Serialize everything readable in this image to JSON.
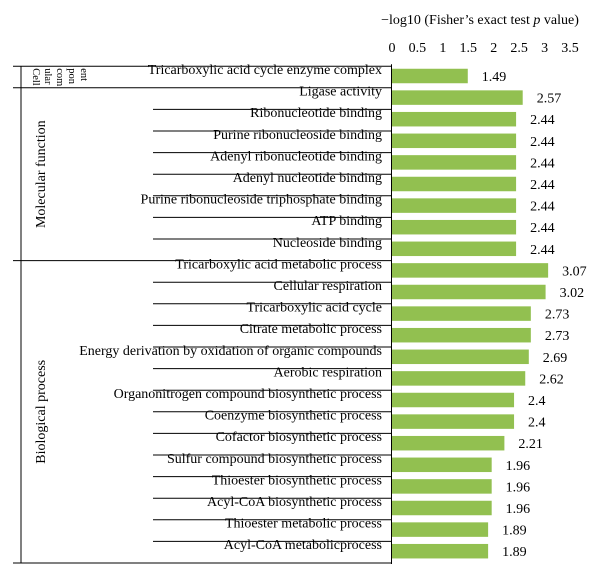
{
  "chart_data": {
    "type": "bar",
    "orientation": "horizontal",
    "axis_title_prefix": "−log10 (Fisher’s exact test ",
    "axis_title_italic": "p",
    "axis_title_suffix": " value)",
    "xlim": [
      0,
      3.5
    ],
    "ticks": [
      "0",
      "0.5",
      "1",
      "1.5",
      "2",
      "2.5",
      "3",
      "3.5"
    ],
    "bar_color": "#92c050",
    "categories": [
      "Tricarboxylic acid cycle enzyme complex",
      "Ligase activity",
      "Ribonucleotide binding",
      "Purine ribonucleoside binding",
      "Adenyl ribonucleotide binding",
      "Adenyl nucleotide binding",
      "Purine ribonucleoside triphosphate binding",
      "ATP binding",
      "Nucleoside binding",
      "Tricarboxylic acid metabolic process",
      "Cellular respiration",
      "Tricarboxylic acid cycle",
      "Citrate metabolic process",
      "Energy derivation by oxidation of organic compounds",
      "Aerobic respiration",
      "Organonitrogen compound biosynthetic process",
      "Coenzyme biosynthetic process",
      "Cofactor biosynthetic process",
      "Sulfur compound biosynthetic process",
      "Thioester biosynthetic process",
      "Acyl-CoA biosynthetic process",
      "Thioester metabolic process",
      "Acyl-CoA metabolicprocess"
    ],
    "values": [
      1.49,
      2.57,
      2.44,
      2.44,
      2.44,
      2.44,
      2.44,
      2.44,
      2.44,
      3.07,
      3.02,
      2.73,
      2.73,
      2.69,
      2.62,
      2.4,
      2.4,
      2.21,
      1.96,
      1.96,
      1.96,
      1.89,
      1.89
    ],
    "value_labels": [
      "1.49",
      "2.57",
      "2.44",
      "2.44",
      "2.44",
      "2.44",
      "2.44",
      "2.44",
      "2.44",
      "3.07",
      "3.02",
      "2.73",
      "2.73",
      "2.69",
      "2.62",
      "2.4",
      "2.4",
      "2.21",
      "1.96",
      "1.96",
      "1.96",
      "1.89",
      "1.89"
    ],
    "groups": [
      {
        "label_lines": [
          "Cell",
          "ular",
          "com",
          "pon",
          "ent"
        ],
        "start": 0,
        "end": 0
      },
      {
        "label": "Molecular function",
        "start": 1,
        "end": 8
      },
      {
        "label": "Biological process",
        "start": 9,
        "end": 22
      }
    ]
  }
}
